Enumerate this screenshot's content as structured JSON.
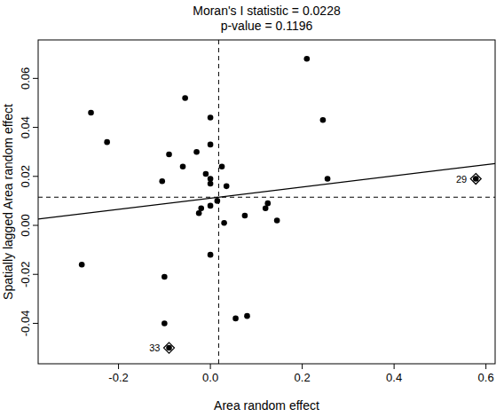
{
  "chart_data": {
    "type": "scatter",
    "title": "Moran's I statistic = 0.0228",
    "subtitle": "p-value = 0.1196",
    "x_label": "Area random effect",
    "y_label": "Spatially lagged Area random effect",
    "x": [
      -0.28,
      -0.26,
      -0.225,
      -0.105,
      -0.09,
      -0.1,
      -0.1,
      -0.09,
      -0.055,
      -0.06,
      -0.03,
      -0.025,
      -0.02,
      -0.01,
      0.0,
      0.0,
      0.0,
      0.0,
      0.0,
      0.0,
      0.015,
      0.025,
      0.03,
      0.035,
      0.055,
      0.075,
      0.08,
      0.12,
      0.125,
      0.145,
      0.21,
      0.245,
      0.255,
      0.578
    ],
    "values": [
      -0.016,
      0.046,
      0.034,
      0.018,
      0.029,
      -0.021,
      -0.04,
      -0.05,
      0.052,
      0.024,
      0.03,
      0.005,
      0.007,
      0.021,
      0.033,
      0.044,
      0.019,
      0.017,
      0.008,
      -0.012,
      0.01,
      0.024,
      0.001,
      0.016,
      -0.038,
      0.004,
      -0.037,
      0.007,
      0.009,
      0.002,
      0.068,
      0.043,
      0.019,
      0.019
    ],
    "point_labels": [
      null,
      null,
      null,
      null,
      null,
      null,
      null,
      "33",
      null,
      null,
      null,
      null,
      null,
      null,
      null,
      null,
      null,
      null,
      null,
      null,
      null,
      null,
      null,
      null,
      null,
      null,
      null,
      null,
      null,
      null,
      null,
      null,
      null,
      "29"
    ],
    "fit_line": {
      "slope": 0.0228,
      "intercept": 0.0111
    },
    "mean_x": 0.018,
    "mean_y": 0.0115,
    "xlim": [
      -0.375,
      0.62
    ],
    "xticks": [
      {
        "value": -0.2,
        "label": "-0.2"
      },
      {
        "value": 0,
        "label": "0.0"
      },
      {
        "value": 0.2,
        "label": "0.2"
      },
      {
        "value": 0.4,
        "label": "0.4"
      },
      {
        "value": 0.6,
        "label": "0.6"
      }
    ],
    "ylim": [
      -0.0565,
      0.0757
    ],
    "yticks": [
      {
        "value": -0.04,
        "label": "-0.04"
      },
      {
        "value": -0.02,
        "label": "-0.02"
      },
      {
        "value": 0,
        "label": "0.00"
      },
      {
        "value": 0.02,
        "label": "0.02"
      },
      {
        "value": 0.04,
        "label": "0.04"
      },
      {
        "value": 0.06,
        "label": "0.06"
      }
    ],
    "color": "#000000",
    "marker": "circle",
    "grid": false
  }
}
